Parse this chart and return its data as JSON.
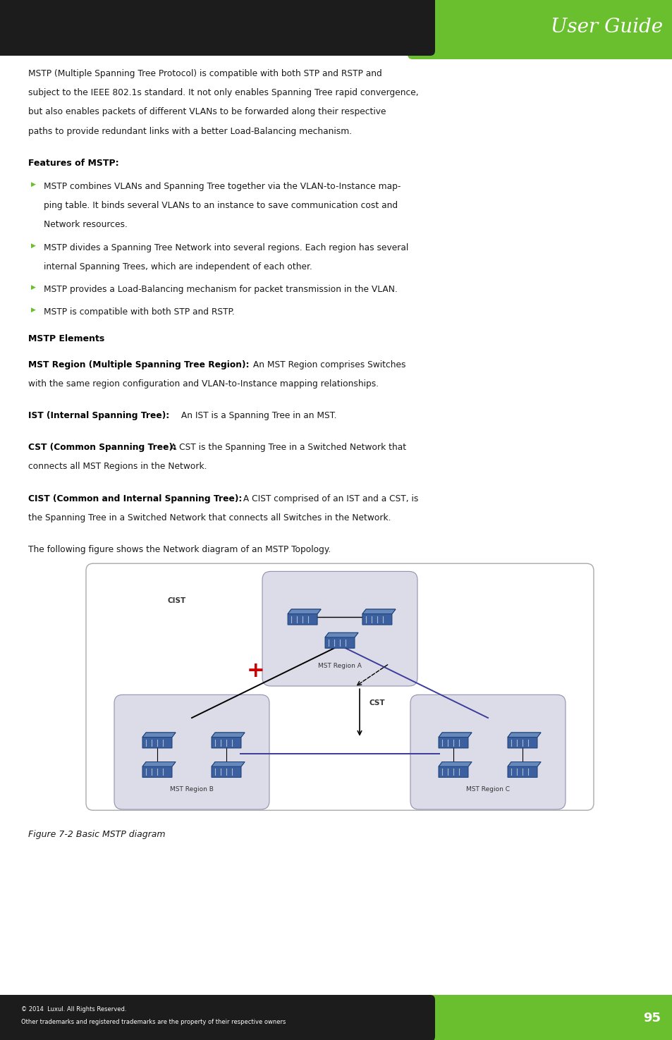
{
  "page_width": 9.54,
  "page_height": 14.75,
  "bg_color": "#ffffff",
  "green_color": "#6abf2e",
  "bullet_color": "#6abf2e",
  "header_text": "User Guide",
  "footer_page_num": "95",
  "footer_line1": "© 2014  Luxul. All Rights Reserved.",
  "footer_line2": "Other trademarks and registered trademarks are the property of their respective owners",
  "body_intro_lines": [
    "MSTP (Multiple Spanning Tree Protocol) is compatible with both STP and RSTP and",
    "subject to the IEEE 802.1s standard. It not only enables Spanning Tree rapid convergence,",
    "but also enables packets of different VLANs to be forwarded along their respective",
    "paths to provide redundant links with a better Load-Balancing mechanism."
  ],
  "features_heading": "Features of MSTP:",
  "bullet_items": [
    [
      "MSTP combines VLANs and Spanning Tree together via the VLAN-to-Instance map-",
      "ping table. It binds several VLANs to an instance to save communication cost and",
      "Network resources."
    ],
    [
      "MSTP divides a Spanning Tree Network into several regions. Each region has several",
      "internal Spanning Trees, which are independent of each other."
    ],
    [
      "MSTP provides a Load-Balancing mechanism for packet transmission in the VLAN."
    ],
    [
      "MSTP is compatible with both STP and RSTP."
    ]
  ],
  "mstp_elements_heading": "MSTP Elements",
  "para1_bold": "MST Region (Multiple Spanning Tree Region):",
  "para1_rest1": " An MST Region comprises Switches",
  "para1_rest2": "with the same region configuration and VLAN-to-Instance mapping relationships.",
  "para2_bold": "IST (Internal Spanning Tree):",
  "para2_rest1": " An IST is a Spanning Tree in an MST.",
  "para3_bold": "CST (Common Spanning Tree):",
  "para3_rest1": " A CST is the Spanning Tree in a Switched Network that",
  "para3_rest2": "connects all MST Regions in the Network.",
  "para4_bold": "CIST (Common and Internal Spanning Tree):",
  "para4_rest1": " A CIST comprised of an IST and a CST, is",
  "para4_rest2": "the Spanning Tree in a Switched Network that connects all Switches in the Network.",
  "figure_intro": "The following figure shows the Network diagram of an MSTP Topology.",
  "figure_caption": "Figure 7-2 Basic MSTP diagram",
  "text_color": "#1a1a1a",
  "region_fill": "#dcdce8",
  "region_edge": "#9090b0",
  "sw_body_color": "#3c5fa0",
  "sw_edge_color": "#1a3f75",
  "sw_highlight": "#6688bb",
  "sw_port_color": "#aabbcc",
  "line_black": "#000000",
  "line_blue": "#3c3c9a",
  "red_x_color": "#cc0000",
  "cist_label": "CIST",
  "cst_label": "CST",
  "mst_a_label": "MST Region A",
  "mst_b_label": "MST Region B",
  "mst_c_label": "MST Region C"
}
